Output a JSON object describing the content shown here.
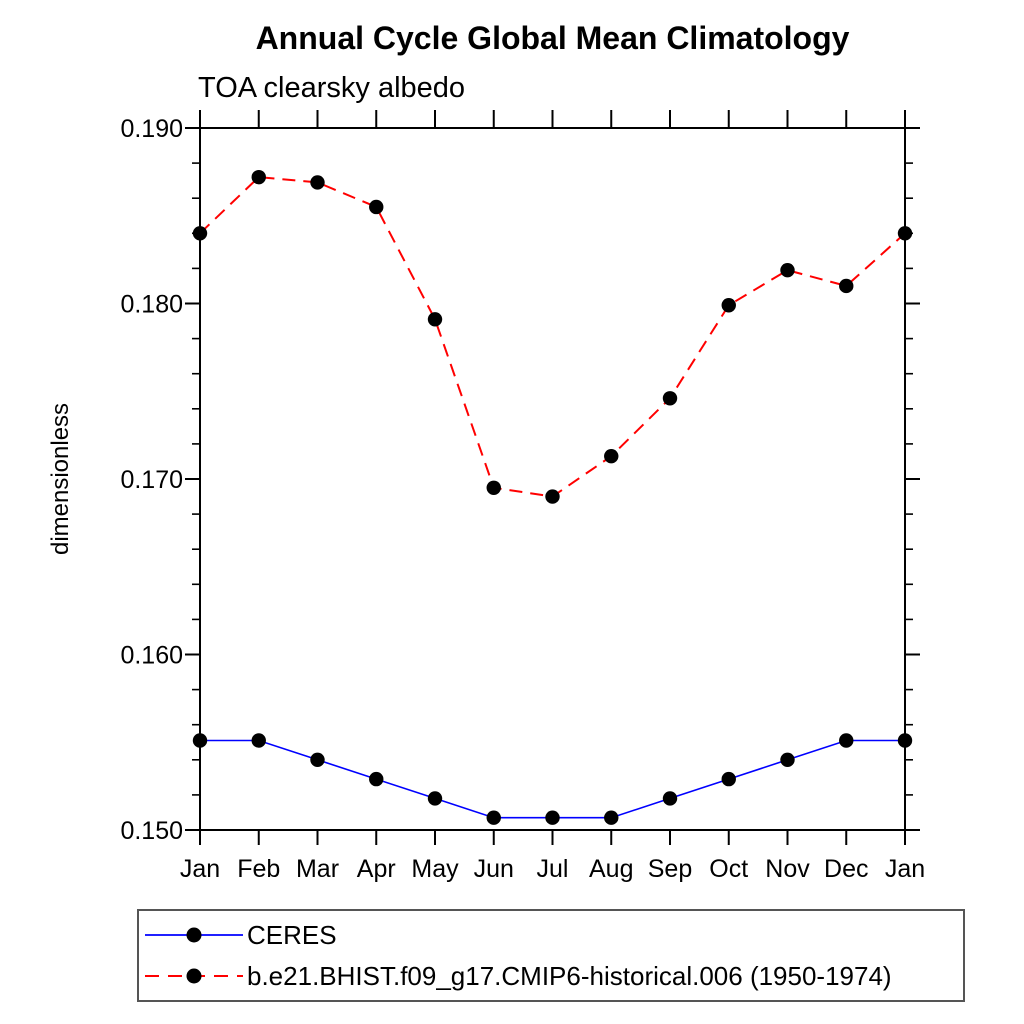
{
  "chart_data": {
    "type": "line",
    "title": "Annual Cycle Global Mean Climatology",
    "subtitle": "TOA clearsky albedo",
    "ylabel": "dimensionless",
    "xlabel": "",
    "x": [
      "Jan",
      "Feb",
      "Mar",
      "Apr",
      "May",
      "Jun",
      "Jul",
      "Aug",
      "Sep",
      "Oct",
      "Nov",
      "Dec",
      "Jan"
    ],
    "ylim": [
      0.15,
      0.19
    ],
    "yticks_major": [
      0.15,
      0.16,
      0.17,
      0.18,
      0.19
    ],
    "ytick_minor_step": 0.002,
    "ytick_label_decimals": 3,
    "grid": false,
    "legend_position": "bottom-left",
    "axis_color": "#000000",
    "marker_color": "#000000",
    "series": [
      {
        "name": "CERES",
        "color": "#0000ff",
        "dash": "solid",
        "marker": "circle",
        "values": [
          0.1551,
          0.1551,
          0.154,
          0.1529,
          0.1518,
          0.1507,
          0.1507,
          0.1507,
          0.1518,
          0.1529,
          0.154,
          0.1551,
          0.1551
        ]
      },
      {
        "name": "b.e21.BHIST.f09_g17.CMIP6-historical.006 (1950-1974)",
        "color": "#ff0000",
        "dash": "dashed",
        "marker": "circle",
        "values": [
          0.184,
          0.1872,
          0.1869,
          0.1855,
          0.1791,
          0.1695,
          0.169,
          0.1713,
          0.1746,
          0.1799,
          0.1819,
          0.181,
          0.184
        ]
      }
    ]
  }
}
